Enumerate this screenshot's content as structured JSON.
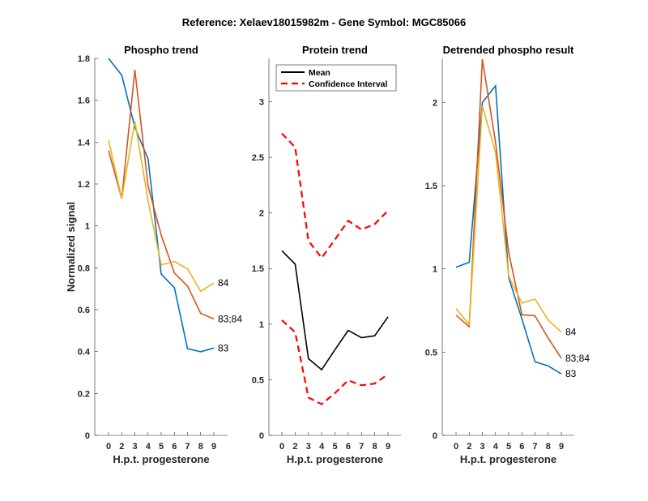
{
  "figure": {
    "suptitle": "Reference:  Xelaev18015982m - Gene Symbol:  MGC85066"
  },
  "chart_data": [
    {
      "type": "line",
      "title": "Phospho trend",
      "xlabel": "H.p.t. progesterone",
      "ylabel": "Normalized signal",
      "categories": [
        "0",
        "2",
        "3",
        "4",
        "5",
        "6",
        "7",
        "8",
        "9"
      ],
      "ylim": [
        0,
        1.8
      ],
      "yticks": [
        0,
        0.2,
        0.4,
        0.6,
        0.8,
        1,
        1.2,
        1.4,
        1.6,
        1.8
      ],
      "ytick_labels": [
        "0",
        "0.2",
        "0.4",
        "0.6",
        "0.8",
        "1",
        "1.2",
        "1.4",
        "1.6",
        "1.8"
      ],
      "grid": false,
      "series": [
        {
          "name": "83",
          "color": "#0072BD",
          "style": "solid",
          "end_label": "83",
          "values": [
            1.8,
            1.72,
            1.47,
            1.32,
            0.77,
            0.705,
            0.414,
            0.399,
            0.417
          ]
        },
        {
          "name": "83;84",
          "color": "#D95319",
          "style": "solid",
          "end_label": "83;84",
          "values": [
            1.36,
            1.13,
            1.745,
            1.19,
            0.956,
            0.775,
            0.713,
            0.582,
            0.556
          ]
        },
        {
          "name": "84",
          "color": "#EDB120",
          "style": "solid",
          "end_label": "84",
          "values": [
            1.41,
            1.13,
            1.5,
            1.12,
            0.814,
            0.83,
            0.795,
            0.688,
            0.727
          ]
        }
      ]
    },
    {
      "type": "line",
      "title": "Protein trend",
      "xlabel": "H.p.t. progesterone",
      "ylabel": "",
      "categories": [
        "0",
        "2",
        "3",
        "4",
        "5",
        "6",
        "7",
        "8",
        "9"
      ],
      "ylim": [
        0,
        3.39
      ],
      "yticks": [
        0,
        0.5,
        1,
        1.5,
        2,
        2.5,
        3
      ],
      "ytick_labels": [
        "0",
        "0.5",
        "1",
        "1.5",
        "2",
        "2.5",
        "3"
      ],
      "grid": false,
      "legend": {
        "placement": "top-left",
        "entries": [
          "Mean",
          "Confidence Interval"
        ]
      },
      "series": [
        {
          "name": "Mean",
          "color": "#000000",
          "style": "solid",
          "values": [
            1.66,
            1.54,
            0.69,
            0.59,
            0.77,
            0.944,
            0.878,
            0.895,
            1.066
          ]
        },
        {
          "name": "Confidence Interval (upper)",
          "legend_name": "Confidence Interval",
          "color": "#FF0000",
          "style": "dashed",
          "values": [
            2.715,
            2.59,
            1.75,
            1.596,
            1.76,
            1.93,
            1.85,
            1.9,
            2.02
          ]
        },
        {
          "name": "Confidence Interval (lower)",
          "legend_name": "Confidence Interval",
          "color": "#FF0000",
          "style": "dashed",
          "values": [
            1.036,
            0.927,
            0.34,
            0.28,
            0.38,
            0.494,
            0.45,
            0.465,
            0.55
          ]
        }
      ]
    },
    {
      "type": "line",
      "title": "Detrended phospho result",
      "xlabel": "H.p.t. progesterone",
      "ylabel": "",
      "categories": [
        "0",
        "2",
        "3",
        "4",
        "5",
        "6",
        "7",
        "8",
        "9"
      ],
      "ylim": [
        0,
        2.265
      ],
      "yticks": [
        0,
        0.5,
        1,
        1.5,
        2
      ],
      "ytick_labels": [
        "0",
        "0.5",
        "1",
        "1.5",
        "2"
      ],
      "grid": false,
      "series": [
        {
          "name": "83",
          "color": "#0072BD",
          "style": "solid",
          "end_label": "83",
          "values": [
            1.01,
            1.04,
            2.0,
            2.1,
            0.948,
            0.7,
            0.442,
            0.417,
            0.369
          ]
        },
        {
          "name": "83;84",
          "color": "#D95319",
          "style": "solid",
          "end_label": "83;84",
          "values": [
            0.722,
            0.652,
            2.26,
            1.76,
            1.1,
            0.725,
            0.718,
            0.584,
            0.463
          ]
        },
        {
          "name": "84",
          "color": "#EDB120",
          "style": "solid",
          "end_label": "84",
          "values": [
            0.762,
            0.665,
            1.98,
            1.7,
            0.956,
            0.795,
            0.819,
            0.693,
            0.62
          ]
        }
      ]
    }
  ]
}
